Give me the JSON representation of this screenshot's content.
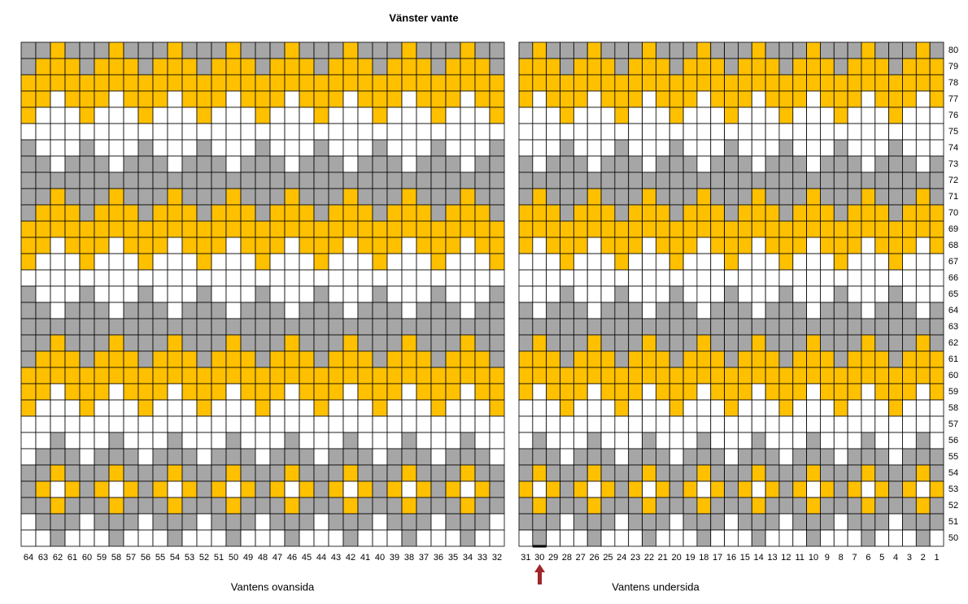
{
  "title": "Vänster vante",
  "colors": {
    "G": "#a6a6a6",
    "Y": "#ffc000",
    "W": "#ffffff"
  },
  "row_numbers": [
    80,
    79,
    78,
    77,
    76,
    75,
    74,
    73,
    72,
    71,
    70,
    69,
    68,
    67,
    66,
    65,
    64,
    63,
    62,
    61,
    60,
    59,
    58,
    57,
    56,
    55,
    54,
    53,
    52,
    51,
    50
  ],
  "left": {
    "caption": "Vantens ovansida",
    "columns": [
      64,
      63,
      62,
      61,
      60,
      59,
      58,
      57,
      56,
      55,
      54,
      53,
      52,
      51,
      50,
      49,
      48,
      47,
      46,
      45,
      44,
      43,
      42,
      41,
      40,
      39,
      38,
      37,
      36,
      35,
      34,
      33,
      32
    ],
    "rows": [
      "GGYGGGYGGGYGGGYGGGYGGGYGGGYGGGYGG",
      "GYYYGYYYGYYYGYYYGYYYGYYYGYYYGYYYG",
      "YYYYYYYYYYYYYYYYYYYYYYYYYYYYYYYYY",
      "YYWYYYWYYYWYYYWYYYWYYYWYYYWYYYWYY",
      "YWWWYWWWYWWWYWWWYWWWYWWWYWWWYWWWY",
      "WWWWWWWWWWWWWWWWWWWWWWWWWWWWWWWWW",
      "GWWWGWWWGWWWGWWWGWWWGWWWGWWWGWWWG",
      "GGWGGGWGGGWGGGWGGGWGGGWGGGWGGGWGG",
      "GGGGGGGGGGGGGGGGGGGGGGGGGGGGGGGGG",
      "GGYGGGYGGGYGGGYGGGYGGGYGGGYGGGYGG",
      "GYYYGYYYGYYYGYYYGYYYGYYYGYYYGYYYG",
      "YYYYYYYYYYYYYYYYYYYYYYYYYYYYYYYYY",
      "YYWYYYWYYYWYYYWYYYWYYYWYYYWYYYWYY",
      "YWWWYWWWYWWWYWWWYWWWYWWWYWWWYWWWY",
      "WWWWWWWWWWWWWWWWWWWWWWWWWWWWWWWWW",
      "GWWWGWWWGWWWGWWWGWWWGWWWGWWWGWWWG",
      "GGWGGGWGGGWGGGWGGGWGGGWGGGWGGGWGG",
      "GGGGGGGGGGGGGGGGGGGGGGGGGGGGGGGGG",
      "GGYGGGYGGGYGGGYGGGYGGGYGGGYGGGYGG",
      "GYYYGYYYGYYYGYYYGYYYGYYYGYYYGYYYG",
      "YYYYYYYYYYYYYYYYYYYYYYYYYYYYYYYYY",
      "YYWYYYWYYYWYYYWYYYWYYYWYYYWYYYWYY",
      "YWWWYWWWYWWWYWWWYWWWYWWWYWWWYWWWY",
      "WWWWWWWWWWWWWWWWWWWWWWWWWWWWWWWWW",
      "WWGWWWGWWWGWWWGWWWGWWWGWWWGWWWGWW",
      "WGGGWGGGWGGGWGGGWGGGWGGGWGGGWGGGW",
      "GGYGGGYGGGYGGGYGGGYGGGYGGGYGGGYGG",
      "GYWYGYWYGYWYGYWYGYWYGYWYGYWYGYWYG",
      "GGYGGGYGGGYGGGYGGGYGGGYGGGYGGGYGG",
      "WGGGWGGGWGGGWGGGWGGGWGGGWGGGWGGGW",
      "WWGWWWGWWWGWWWGWWWGWWWGWWWGWWWGWW"
    ]
  },
  "right": {
    "caption": "Vantens undersida",
    "columns": [
      31,
      30,
      29,
      28,
      27,
      26,
      25,
      24,
      23,
      22,
      21,
      20,
      19,
      18,
      17,
      16,
      15,
      14,
      13,
      12,
      11,
      10,
      9,
      8,
      7,
      6,
      5,
      4,
      3,
      2,
      1
    ],
    "rows": [
      "GYGGGYGGGYGGGYGGGYGGGYGGGYGGGYG",
      "YYYGYYYGYYYGYYYGYYYGYYYGYYYGYYY",
      "YYYYYYYYYYYYYYYYYYYYYYYYYYYYYYY",
      "YWYYYWYYYWYYYWYYYWYYYWYYYWYYYWY",
      "WWWYWWWYWWWYWWWYWWWYWWWYWWWYWWW",
      "WWWWWWWWWWWWWWWWWWWWWWWWWWWWWWW",
      "WWWGWWWGWWWGWWWGWWWGWWWGWWWGWWW",
      "GWGGGWGGGWGGGWGGGWGGGWGGGWGGGWG",
      "GGGGGGGGGGGGGGGGGGGGGGGGGGGGGGG",
      "GYGGGYGGGYGGGYGGGYGGGYGGGYGGGYG",
      "YYYGYYYGYYYGYYYGYYYGYYYGYYYGYYY",
      "YYYYYYYYYYYYYYYYYYYYYYYYYYYYYYY",
      "YWYYYWYYYWYYYWYYYWYYYWYYYWYYYWY",
      "WWWYWWWYWWWYWWWYWWWYWWWYWWWYWWW",
      "WWWWWWWWWWWWWWWWWWWWWWWWWWWWWWW",
      "WWWGWWWGWWWGWWWGWWWGWWWGWWWGWWW",
      "GWGGGWGGGWGGGWGGGWGGGWGGGWGGGWG",
      "GGGGGGGGGGGGGGGGGGGGGGGGGGGGGGG",
      "GYGGGYGGGYGGGYGGGYGGGYGGGYGGGYG",
      "YYYGYYYGYYYGYYYGYYYGYYYGYYYGYYY",
      "YYYYYYYYYYYYYYYYYYYYYYYYYYYYYYY",
      "YWYYYWYYYWYYYWYYYWYYYWYYYWYYYWY",
      "WWWYWWWYWWWYWWWYWWWYWWWYWWWYWWW",
      "WWWWWWWWWWWWWWWWWWWWWWWWWWWWWWW",
      "WGWWWGWWWGWWWGWWWGWWWGWWWGWWWGW",
      "GGGWGGGWGGGWGGGWGGGWGGGWGGGWGGG",
      "GYGGGYGGGYGGGYGGGYGGGYGGGYGGGYG",
      "YWYGYWYGYWYGYWYGYWYGYWYGYWYGYWY",
      "GYGGGYGGGYGGGYGGGYGGGYGGGYGGGYG",
      "GGGWGGGWGGGWGGGWGGGWGGGWGGGWGGG",
      "WGWWWGWWWGWWWGWWWGWWWGWWWGWWWGW"
    ]
  }
}
